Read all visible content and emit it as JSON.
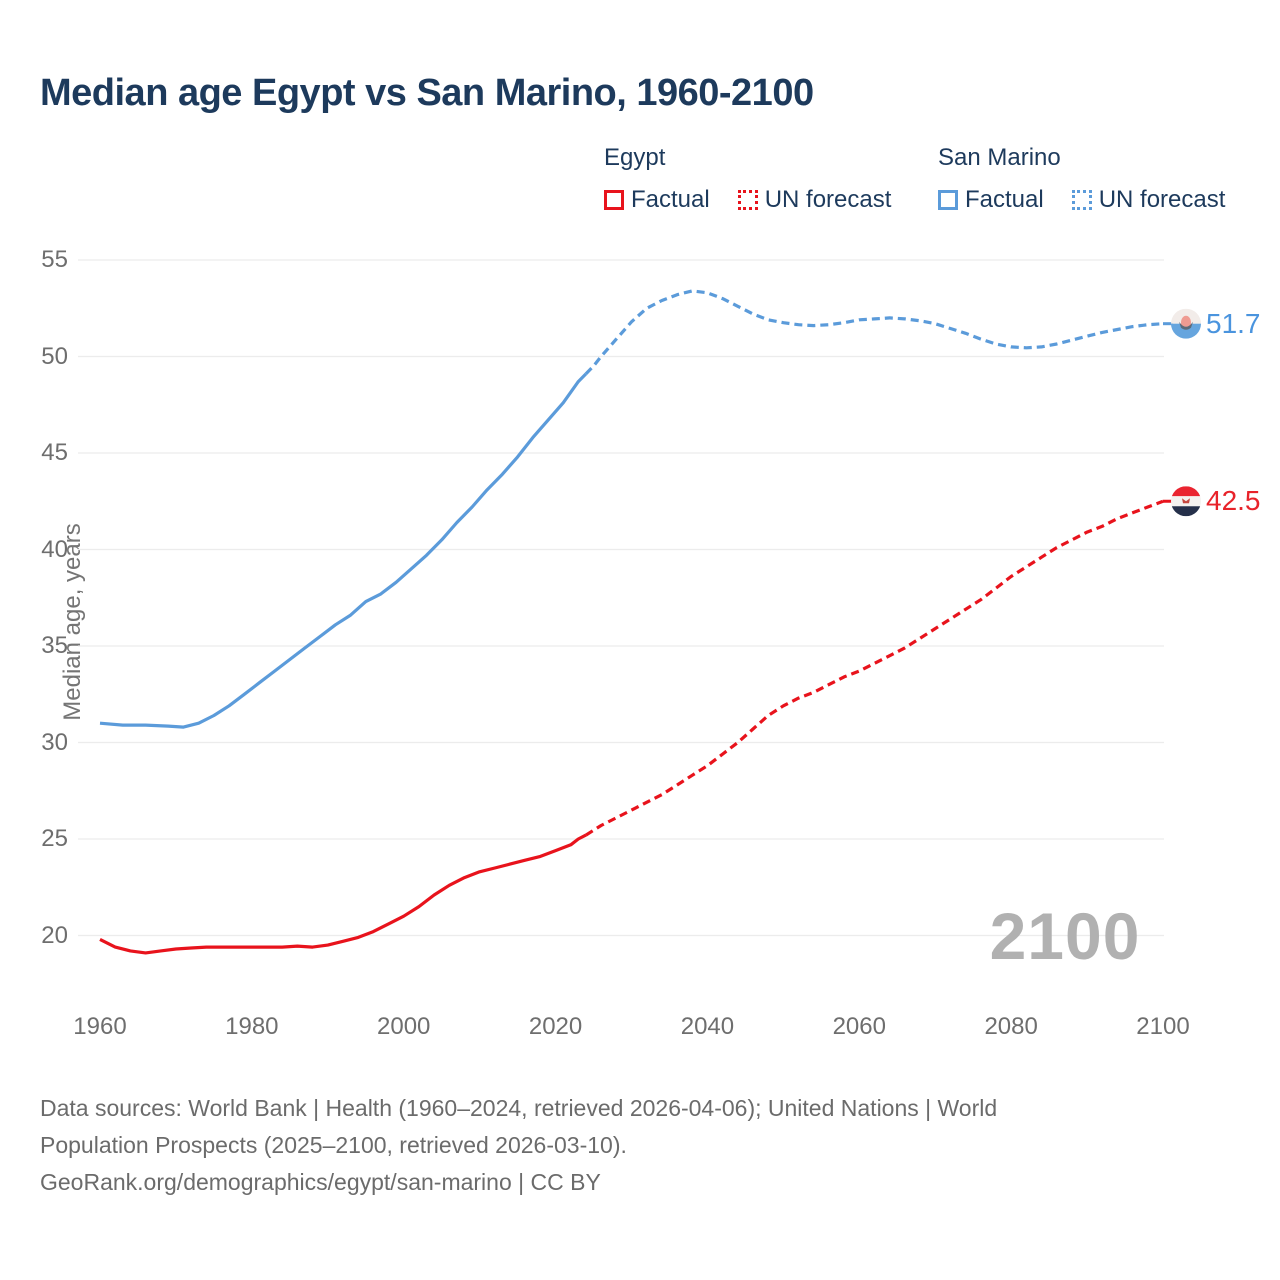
{
  "title": "Median age Egypt vs San Marino, 1960-2100",
  "colors": {
    "egypt": "#e8131c",
    "san_marino": "#5b9bda",
    "title_text": "#1d3a5c",
    "axis_text": "#6e6e6e",
    "gridline": "#ececec",
    "watermark": "#b1b1b1"
  },
  "legend": {
    "groups": [
      {
        "name": "Egypt",
        "color": "#e8131c",
        "items": [
          {
            "label": "Factual",
            "style": "solid"
          },
          {
            "label": "UN forecast",
            "style": "dotted"
          }
        ]
      },
      {
        "name": "San Marino",
        "color": "#5b9bda",
        "items": [
          {
            "label": "Factual",
            "style": "solid"
          },
          {
            "label": "UN forecast",
            "style": "dotted"
          }
        ]
      }
    ]
  },
  "watermark": "2100",
  "end_labels": [
    {
      "series": "San Marino",
      "value": "51.7",
      "flag": "san-marino-flag-icon"
    },
    {
      "series": "Egypt",
      "value": "42.5",
      "flag": "egypt-flag-icon"
    }
  ],
  "footer": {
    "lines": [
      "Data sources: World Bank | Health (1960–2024, retrieved 2026-04-06); United Nations | World",
      "Population Prospects (2025–2100, retrieved 2026-03-10).",
      "GeoRank.org/demographics/egypt/san-marino | CC BY"
    ]
  },
  "chart_data": {
    "type": "line",
    "title": "Median age Egypt vs San Marino, 1960-2100",
    "xlabel": "",
    "ylabel": "Median age, years",
    "x_ticks": [
      1960,
      1980,
      2000,
      2020,
      2040,
      2060,
      2080,
      2100
    ],
    "y_ticks": [
      20,
      25,
      30,
      35,
      40,
      45,
      50,
      55
    ],
    "xlim": [
      1960,
      2100
    ],
    "ylim": [
      17.5,
      55
    ],
    "grid": "horizontal",
    "legend_position": "top",
    "series": [
      {
        "name": "San Marino factual",
        "color": "#5b9bda",
        "dash": "solid",
        "points": [
          [
            1960,
            31.0
          ],
          [
            1963,
            30.9
          ],
          [
            1966,
            30.9
          ],
          [
            1969,
            30.85
          ],
          [
            1971,
            30.8
          ],
          [
            1973,
            31.0
          ],
          [
            1975,
            31.4
          ],
          [
            1977,
            31.9
          ],
          [
            1979,
            32.5
          ],
          [
            1981,
            33.1
          ],
          [
            1983,
            33.7
          ],
          [
            1985,
            34.3
          ],
          [
            1987,
            34.9
          ],
          [
            1989,
            35.5
          ],
          [
            1991,
            36.1
          ],
          [
            1993,
            36.6
          ],
          [
            1995,
            37.3
          ],
          [
            1997,
            37.7
          ],
          [
            1999,
            38.3
          ],
          [
            2001,
            39.0
          ],
          [
            2003,
            39.7
          ],
          [
            2005,
            40.5
          ],
          [
            2007,
            41.4
          ],
          [
            2009,
            42.2
          ],
          [
            2011,
            43.1
          ],
          [
            2013,
            43.9
          ],
          [
            2015,
            44.8
          ],
          [
            2017,
            45.8
          ],
          [
            2019,
            46.7
          ],
          [
            2021,
            47.6
          ],
          [
            2023,
            48.7
          ],
          [
            2024,
            49.1
          ]
        ]
      },
      {
        "name": "San Marino UN forecast",
        "color": "#5b9bda",
        "dash": "dashed",
        "points": [
          [
            2024,
            49.1
          ],
          [
            2025,
            49.5
          ],
          [
            2026,
            50.0
          ],
          [
            2028,
            50.9
          ],
          [
            2030,
            51.8
          ],
          [
            2032,
            52.5
          ],
          [
            2034,
            52.9
          ],
          [
            2036,
            53.2
          ],
          [
            2038,
            53.4
          ],
          [
            2040,
            53.3
          ],
          [
            2042,
            53.0
          ],
          [
            2044,
            52.6
          ],
          [
            2046,
            52.2
          ],
          [
            2048,
            51.9
          ],
          [
            2050,
            51.75
          ],
          [
            2052,
            51.65
          ],
          [
            2054,
            51.6
          ],
          [
            2056,
            51.65
          ],
          [
            2058,
            51.75
          ],
          [
            2060,
            51.9
          ],
          [
            2062,
            51.95
          ],
          [
            2064,
            52.0
          ],
          [
            2066,
            51.95
          ],
          [
            2068,
            51.85
          ],
          [
            2070,
            51.7
          ],
          [
            2072,
            51.45
          ],
          [
            2074,
            51.2
          ],
          [
            2076,
            50.9
          ],
          [
            2078,
            50.65
          ],
          [
            2080,
            50.5
          ],
          [
            2082,
            50.45
          ],
          [
            2084,
            50.5
          ],
          [
            2086,
            50.65
          ],
          [
            2088,
            50.85
          ],
          [
            2090,
            51.05
          ],
          [
            2092,
            51.25
          ],
          [
            2094,
            51.4
          ],
          [
            2096,
            51.55
          ],
          [
            2098,
            51.65
          ],
          [
            2100,
            51.7
          ]
        ]
      },
      {
        "name": "Egypt factual",
        "color": "#e8131c",
        "dash": "solid",
        "points": [
          [
            1960,
            19.8
          ],
          [
            1962,
            19.4
          ],
          [
            1964,
            19.2
          ],
          [
            1966,
            19.1
          ],
          [
            1968,
            19.2
          ],
          [
            1970,
            19.3
          ],
          [
            1972,
            19.35
          ],
          [
            1974,
            19.4
          ],
          [
            1976,
            19.4
          ],
          [
            1978,
            19.4
          ],
          [
            1980,
            19.4
          ],
          [
            1982,
            19.4
          ],
          [
            1984,
            19.4
          ],
          [
            1986,
            19.45
          ],
          [
            1988,
            19.4
          ],
          [
            1990,
            19.5
          ],
          [
            1992,
            19.7
          ],
          [
            1994,
            19.9
          ],
          [
            1996,
            20.2
          ],
          [
            1998,
            20.6
          ],
          [
            2000,
            21.0
          ],
          [
            2002,
            21.5
          ],
          [
            2004,
            22.1
          ],
          [
            2006,
            22.6
          ],
          [
            2008,
            23.0
          ],
          [
            2010,
            23.3
          ],
          [
            2012,
            23.5
          ],
          [
            2014,
            23.7
          ],
          [
            2016,
            23.9
          ],
          [
            2018,
            24.1
          ],
          [
            2020,
            24.4
          ],
          [
            2022,
            24.7
          ],
          [
            2023,
            25.0
          ],
          [
            2024,
            25.2
          ]
        ]
      },
      {
        "name": "Egypt UN forecast",
        "color": "#e8131c",
        "dash": "dashed",
        "points": [
          [
            2024,
            25.2
          ],
          [
            2026,
            25.7
          ],
          [
            2028,
            26.1
          ],
          [
            2030,
            26.5
          ],
          [
            2032,
            26.9
          ],
          [
            2034,
            27.3
          ],
          [
            2036,
            27.8
          ],
          [
            2038,
            28.3
          ],
          [
            2040,
            28.8
          ],
          [
            2042,
            29.4
          ],
          [
            2044,
            30.0
          ],
          [
            2046,
            30.7
          ],
          [
            2048,
            31.4
          ],
          [
            2050,
            31.9
          ],
          [
            2052,
            32.3
          ],
          [
            2054,
            32.6
          ],
          [
            2056,
            33.0
          ],
          [
            2058,
            33.4
          ],
          [
            2060,
            33.7
          ],
          [
            2062,
            34.1
          ],
          [
            2064,
            34.5
          ],
          [
            2066,
            34.9
          ],
          [
            2068,
            35.4
          ],
          [
            2070,
            35.9
          ],
          [
            2072,
            36.4
          ],
          [
            2074,
            36.9
          ],
          [
            2076,
            37.4
          ],
          [
            2078,
            38.0
          ],
          [
            2080,
            38.6
          ],
          [
            2082,
            39.1
          ],
          [
            2084,
            39.6
          ],
          [
            2086,
            40.1
          ],
          [
            2088,
            40.5
          ],
          [
            2090,
            40.9
          ],
          [
            2092,
            41.2
          ],
          [
            2094,
            41.6
          ],
          [
            2096,
            41.9
          ],
          [
            2098,
            42.2
          ],
          [
            2100,
            42.5
          ]
        ]
      }
    ],
    "end_values": {
      "san_marino": 51.7,
      "egypt": 42.5
    }
  }
}
